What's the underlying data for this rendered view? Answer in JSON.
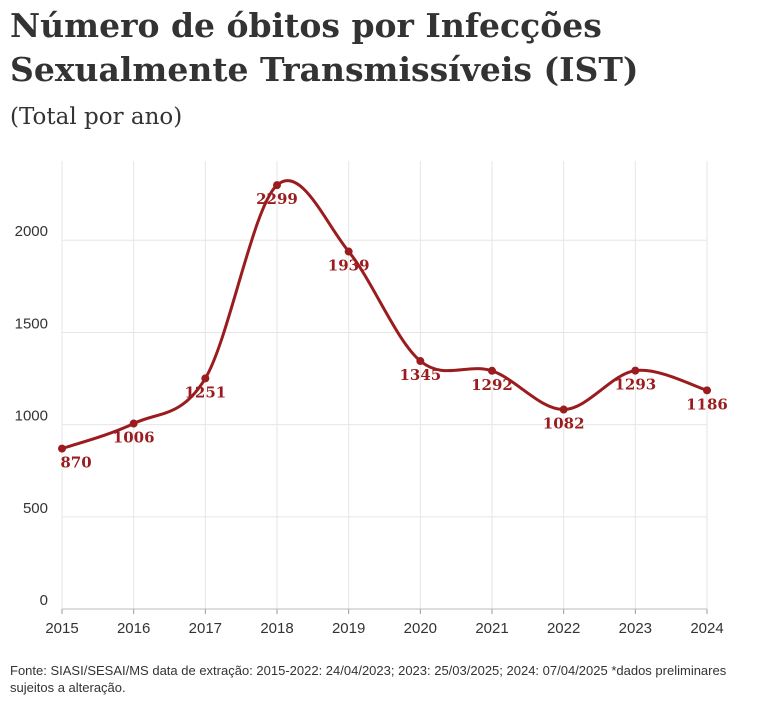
{
  "chart_data": {
    "type": "line",
    "title": "Número de óbitos por Infecções Sexualmente Transmissíveis (IST)",
    "subtitle": "(Total por ano)",
    "note": "Fonte: SIASI/SESAI/MS data de extração: 2015-2022: 24/04/2023; 2023: 25/03/2025; 2024: 07/04/2025 *dados preliminares sujeitos a alteração.",
    "x": [
      2015,
      2016,
      2017,
      2018,
      2019,
      2020,
      2021,
      2022,
      2023,
      2024
    ],
    "values": [
      870,
      1006,
      1251,
      2299,
      1939,
      1345,
      1292,
      1082,
      1293,
      1186
    ],
    "color": "#9b1c1f",
    "xlim": [
      2015,
      2024
    ],
    "xticks": [
      2015,
      2016,
      2017,
      2018,
      2019,
      2020,
      2021,
      2022,
      2023,
      2024
    ],
    "ylim": [
      0,
      2430
    ],
    "yticks": [
      0,
      500,
      1000,
      1500,
      2000
    ],
    "grid": true
  }
}
